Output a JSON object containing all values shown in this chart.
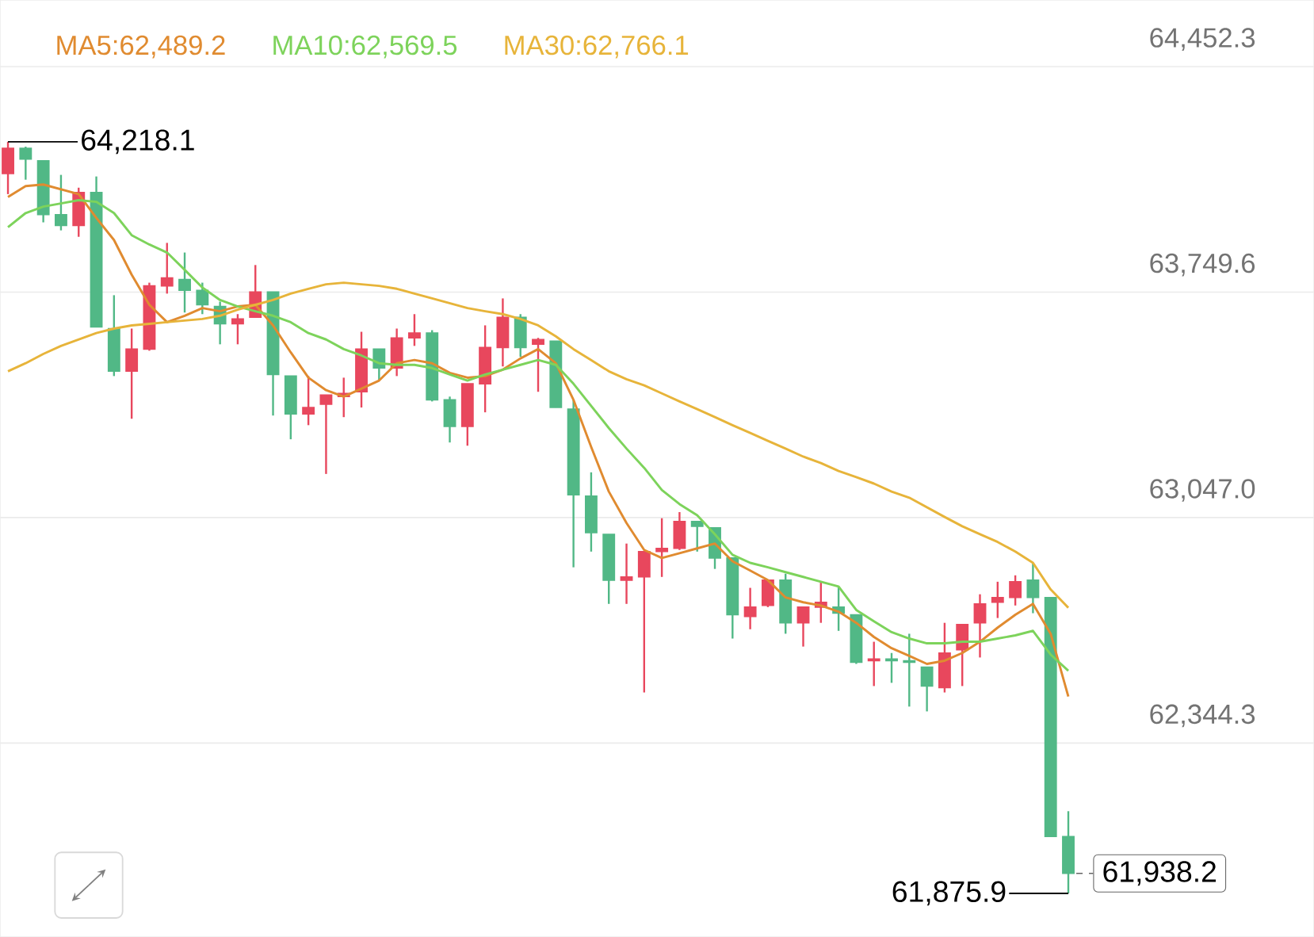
{
  "chart_data": {
    "type": "candlestick",
    "categories": [
      null,
      null,
      null,
      null,
      null,
      null,
      null,
      null,
      null,
      null,
      null,
      null,
      null,
      null,
      null,
      null,
      null,
      null,
      null,
      null,
      null,
      null,
      null,
      null,
      null,
      null,
      null,
      null,
      null,
      null,
      null,
      null,
      null,
      null,
      null,
      null,
      null,
      null,
      null,
      null,
      null,
      null,
      null,
      null,
      null,
      null,
      null,
      null,
      null,
      null,
      null,
      null,
      null,
      null,
      null,
      null,
      null,
      null,
      null,
      null,
      null
    ],
    "ohlc": [
      [
        64119,
        64218.1,
        64055,
        64198
      ],
      [
        64198,
        64203,
        64100,
        64164
      ],
      [
        64159,
        64159,
        63967,
        63991
      ],
      [
        63991,
        64115,
        63942,
        63957
      ],
      [
        63957,
        64075,
        63922,
        64060
      ],
      [
        64060,
        64110,
        63641,
        63641
      ],
      [
        63636,
        63740,
        63488,
        63503
      ],
      [
        63503,
        63636,
        63355,
        63572
      ],
      [
        63572,
        63779,
        63567,
        63769
      ],
      [
        63769,
        63903,
        63745,
        63794
      ],
      [
        63789,
        63873,
        63686,
        63755
      ],
      [
        63755,
        63779,
        63681,
        63710
      ],
      [
        63705,
        63720,
        63587,
        63651
      ],
      [
        63651,
        63681,
        63587,
        63666
      ],
      [
        63671,
        63834,
        63671,
        63750
      ],
      [
        63750,
        63750,
        63365,
        63493
      ],
      [
        63488,
        63488,
        63291,
        63370
      ],
      [
        63370,
        63488,
        63335,
        63390
      ],
      [
        63400,
        63429,
        63183,
        63429
      ],
      [
        63424,
        63483,
        63360,
        63434
      ],
      [
        63439,
        63626,
        63390,
        63572
      ],
      [
        63572,
        63572,
        63474,
        63513
      ],
      [
        63513,
        63636,
        63488,
        63607
      ],
      [
        63607,
        63681,
        63582,
        63622
      ],
      [
        63622,
        63631,
        63409,
        63414
      ],
      [
        63414,
        63424,
        63281,
        63331
      ],
      [
        63331,
        63464,
        63271,
        63464
      ],
      [
        63464,
        63646,
        63375,
        63577
      ],
      [
        63577,
        63730,
        63518,
        63671
      ],
      [
        63671,
        63681,
        63548,
        63577
      ],
      [
        63587,
        63607,
        63439,
        63602
      ],
      [
        63597,
        63597,
        63390,
        63390
      ],
      [
        63385,
        63414,
        62892,
        63118
      ],
      [
        63114,
        63188,
        62941,
        63000
      ],
      [
        62995,
        62995,
        62778,
        62852
      ],
      [
        62852,
        62966,
        62778,
        62862
      ],
      [
        62862,
        62941,
        62502,
        62941
      ],
      [
        62941,
        63045,
        62862,
        62951
      ],
      [
        62951,
        63064,
        62946,
        63035
      ],
      [
        63035,
        63035,
        62941,
        63020
      ],
      [
        63015,
        63015,
        62887,
        62921
      ],
      [
        62921,
        62921,
        62670,
        62744
      ],
      [
        62739,
        62828,
        62699,
        62768
      ],
      [
        62773,
        62852,
        62768,
        62852
      ],
      [
        62852,
        62872,
        62685,
        62719
      ],
      [
        62719,
        62768,
        62645,
        62768
      ],
      [
        62768,
        62847,
        62719,
        62783
      ],
      [
        62768,
        62832,
        62694,
        62749
      ],
      [
        62744,
        62744,
        62591,
        62596
      ],
      [
        62601,
        62660,
        62522,
        62606
      ],
      [
        62606,
        62625,
        62532,
        62601
      ],
      [
        62601,
        62685,
        62458,
        62596
      ],
      [
        62581,
        62581,
        62443,
        62522
      ],
      [
        62517,
        62719,
        62502,
        62625
      ],
      [
        62635,
        62714,
        62522,
        62714
      ],
      [
        62719,
        62808,
        62611,
        62778
      ],
      [
        62783,
        62847,
        62734,
        62798
      ],
      [
        62798,
        62867,
        62773,
        62847
      ],
      [
        62852,
        62906,
        62749,
        62798
      ],
      [
        62798,
        62798,
        62053,
        62053
      ],
      [
        62053,
        62132,
        61875.9,
        61938.2
      ]
    ],
    "colors": [
      "#e8475d",
      "#51b886",
      "#51b886",
      "#51b886",
      "#e8475d",
      "#51b886",
      "#51b886",
      "#e8475d",
      "#e8475d",
      "#e8475d",
      "#51b886",
      "#51b886",
      "#51b886",
      "#e8475d",
      "#e8475d",
      "#51b886",
      "#51b886",
      "#e8475d",
      "#e8475d",
      "#e8475d",
      "#e8475d",
      "#51b886",
      "#e8475d",
      "#e8475d",
      "#51b886",
      "#51b886",
      "#e8475d",
      "#e8475d",
      "#e8475d",
      "#51b886",
      "#e8475d",
      "#51b886",
      "#51b886",
      "#51b886",
      "#51b886",
      "#e8475d",
      "#e8475d",
      "#e8475d",
      "#e8475d",
      "#51b886",
      "#51b886",
      "#51b886",
      "#e8475d",
      "#e8475d",
      "#51b886",
      "#e8475d",
      "#e8475d",
      "#51b886",
      "#51b886",
      "#e8475d",
      "#51b886",
      "#51b886",
      "#51b886",
      "#e8475d",
      "#e8475d",
      "#e8475d",
      "#e8475d",
      "#e8475d",
      "#51b886",
      "#51b886",
      "#51b886"
    ],
    "series": [
      {
        "name": "MA5:62,489.2",
        "type": "line",
        "color": "#e08b30",
        "values": [
          64046,
          64080,
          64085,
          64070,
          64055,
          63981,
          63912,
          63804,
          63710,
          63656,
          63676,
          63700,
          63690,
          63705,
          63710,
          63646,
          63562,
          63483,
          63444,
          63424,
          63449,
          63474,
          63528,
          63538,
          63528,
          63498,
          63483,
          63488,
          63508,
          63543,
          63572,
          63528,
          63414,
          63267,
          63128,
          63030,
          62946,
          62921,
          62936,
          62951,
          62966,
          62911,
          62882,
          62852,
          62798,
          62783,
          62773,
          62754,
          62719,
          62675,
          62640,
          62616,
          62591,
          62601,
          62625,
          62660,
          62704,
          62744,
          62778,
          62685,
          62489.2
        ]
      },
      {
        "name": "MA10:62,569.5",
        "type": "line",
        "color": "#7dd35b",
        "values": [
          63952,
          63996,
          64016,
          64026,
          64036,
          64031,
          63996,
          63927,
          63898,
          63873,
          63819,
          63764,
          63725,
          63705,
          63690,
          63676,
          63656,
          63622,
          63602,
          63572,
          63552,
          63528,
          63523,
          63523,
          63513,
          63493,
          63474,
          63493,
          63508,
          63523,
          63538,
          63523,
          63464,
          63395,
          63326,
          63262,
          63202,
          63133,
          63089,
          63054,
          62995,
          62931,
          62906,
          62892,
          62877,
          62862,
          62847,
          62832,
          62759,
          62724,
          62690,
          62670,
          62655,
          62655,
          62660,
          62660,
          62670,
          62680,
          62694,
          62620,
          62569.5
        ]
      },
      {
        "name": "MA30:62,766.1",
        "type": "line",
        "color": "#e7b43a",
        "values": [
          63503,
          63528,
          63557,
          63582,
          63602,
          63622,
          63636,
          63646,
          63651,
          63656,
          63661,
          63666,
          63676,
          63695,
          63710,
          63725,
          63745,
          63760,
          63774,
          63779,
          63774,
          63769,
          63760,
          63745,
          63730,
          63715,
          63700,
          63690,
          63681,
          63666,
          63646,
          63612,
          63572,
          63538,
          63503,
          63478,
          63459,
          63434,
          63409,
          63385,
          63360,
          63335,
          63311,
          63286,
          63262,
          63237,
          63217,
          63192,
          63173,
          63153,
          63128,
          63109,
          63079,
          63049,
          63020,
          62995,
          62971,
          62941,
          62906,
          62823,
          62766.1
        ]
      }
    ],
    "ylim": [
      61740,
      64660
    ],
    "yticks": [
      {
        "value": 62344.3,
        "label": "62,344.3"
      },
      {
        "value": 63047.0,
        "label": "63,047.0"
      },
      {
        "value": 63749.6,
        "label": "63,749.6"
      },
      {
        "value": 64452.3,
        "label": "64,452.3"
      }
    ],
    "grid": "y",
    "legend": "top left",
    "tick_labels": "y",
    "annotations": [
      "64,218.1",
      "61,875.9",
      "61,938.2"
    ]
  }
}
